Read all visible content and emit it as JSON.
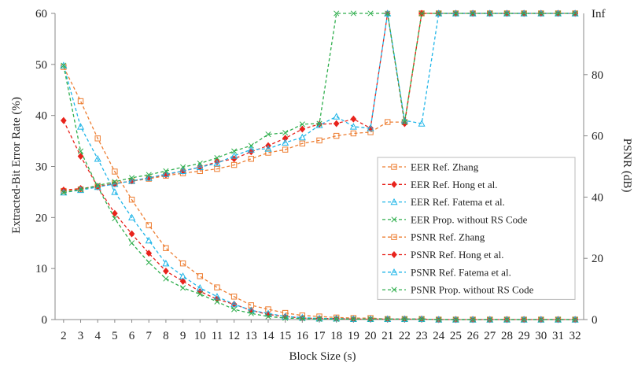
{
  "chart_data": {
    "type": "line",
    "xlabel": "Block Size (s)",
    "ylabel_left": "Extracted-Bit Error Rate (%)",
    "ylabel_right": "PSNR (dB)",
    "x": [
      2,
      3,
      4,
      5,
      6,
      7,
      8,
      9,
      10,
      11,
      12,
      13,
      14,
      15,
      16,
      17,
      18,
      19,
      20,
      21,
      22,
      23,
      24,
      25,
      26,
      27,
      28,
      29,
      30,
      31,
      32
    ],
    "x_tick_labels": [
      "2",
      "3",
      "4",
      "5",
      "6",
      "7",
      "8",
      "9",
      "10",
      "11",
      "12",
      "13",
      "14",
      "15",
      "16",
      "17",
      "18",
      "19",
      "20",
      "21",
      "22",
      "23",
      "24",
      "25",
      "26",
      "27",
      "28",
      "29",
      "30",
      "31",
      "32"
    ],
    "ylim_left": [
      0,
      60
    ],
    "yticks_left": [
      "0",
      "10",
      "20",
      "30",
      "40",
      "50",
      "60"
    ],
    "ylim_right": [
      0,
      100
    ],
    "yticks_right": [
      "0",
      "20",
      "40",
      "60",
      "80"
    ],
    "right_top_label": "Inf",
    "grid": false,
    "legend_position": "right",
    "series": [
      {
        "name": "EER Ref. Zhang",
        "axis": "left",
        "color": "#ed7d31",
        "marker": "square",
        "values": [
          49.5,
          42.8,
          35.5,
          29.0,
          23.5,
          18.5,
          14.0,
          11.0,
          8.5,
          6.3,
          4.5,
          2.8,
          2.0,
          1.3,
          0.8,
          0.6,
          0.4,
          0.3,
          0.3,
          0.1,
          0.1,
          0.1,
          0,
          0,
          0,
          0,
          0,
          0,
          0,
          0,
          0
        ]
      },
      {
        "name": "EER Ref. Hong et al.",
        "axis": "left",
        "color": "#e8231c",
        "marker": "diamond",
        "values": [
          39.0,
          32.0,
          26.0,
          20.8,
          16.8,
          13.0,
          9.5,
          7.5,
          5.5,
          4.0,
          3.0,
          1.8,
          1.0,
          0.6,
          0.3,
          0.2,
          0.2,
          0.1,
          0.1,
          0.1,
          0.1,
          0.1,
          0,
          0,
          0,
          0,
          0,
          0,
          0,
          0,
          0
        ]
      },
      {
        "name": "EER Ref. Fatema et al.",
        "axis": "left",
        "color": "#1fb5e8",
        "marker": "triangle",
        "values": [
          49.8,
          37.8,
          31.5,
          25.0,
          20.0,
          15.5,
          11.0,
          8.5,
          6.2,
          4.5,
          3.0,
          1.8,
          1.2,
          0.6,
          0.4,
          0.2,
          0.2,
          0.1,
          0.1,
          0.1,
          0.1,
          0.1,
          0,
          0,
          0,
          0,
          0,
          0,
          0,
          0,
          0
        ]
      },
      {
        "name": "EER Prop. without RS Code",
        "axis": "left",
        "color": "#2eae4c",
        "marker": "x",
        "values": [
          49.8,
          33.0,
          26.0,
          19.8,
          15.0,
          11.2,
          8.0,
          6.2,
          5.0,
          3.5,
          2.0,
          1.2,
          0.6,
          0.3,
          0.2,
          0.1,
          0.1,
          0.1,
          0.1,
          0.1,
          0.1,
          0.1,
          0,
          0,
          0,
          0,
          0,
          0,
          0,
          0,
          0
        ]
      },
      {
        "name": "PSNR Ref. Zhang",
        "axis": "right",
        "color": "#ed7d31",
        "marker": "square",
        "values": [
          42.0,
          42.5,
          43.5,
          44.5,
          45.2,
          46.0,
          47.0,
          47.8,
          48.5,
          49.2,
          50.5,
          52.5,
          54.5,
          55.5,
          57.5,
          58.5,
          60.0,
          60.8,
          61.2,
          64.5,
          64.5,
          "Inf",
          "Inf",
          "Inf",
          "Inf",
          "Inf",
          "Inf",
          "Inf",
          "Inf",
          "Inf",
          "Inf"
        ]
      },
      {
        "name": "PSNR Ref. Hong et al.",
        "axis": "right",
        "color": "#e8231c",
        "marker": "diamond",
        "values": [
          42.3,
          42.8,
          43.5,
          44.3,
          45.3,
          46.3,
          47.3,
          48.5,
          49.8,
          51.5,
          52.5,
          54.8,
          56.8,
          59.2,
          62.2,
          63.8,
          64.0,
          65.5,
          62.5,
          "Inf",
          64.0,
          "Inf",
          "Inf",
          "Inf",
          "Inf",
          "Inf",
          "Inf",
          "Inf",
          "Inf",
          "Inf",
          "Inf"
        ]
      },
      {
        "name": "PSNR Ref. Fatema et al.",
        "axis": "right",
        "color": "#1fb5e8",
        "marker": "triangle",
        "values": [
          41.5,
          42.3,
          43.3,
          44.3,
          45.3,
          46.3,
          47.5,
          48.5,
          49.8,
          51.0,
          53.5,
          55.5,
          55.8,
          57.8,
          59.5,
          63.5,
          66.3,
          63.0,
          62.5,
          "Inf",
          65.0,
          64.0,
          "Inf",
          "Inf",
          "Inf",
          "Inf",
          "Inf",
          "Inf",
          "Inf",
          "Inf",
          "Inf"
        ]
      },
      {
        "name": "PSNR Prop. without RS Code",
        "axis": "right",
        "color": "#2eae4c",
        "marker": "x",
        "values": [
          41.5,
          42.5,
          43.8,
          45.0,
          46.3,
          47.3,
          48.5,
          49.8,
          51.0,
          52.8,
          55.0,
          56.8,
          60.5,
          61.0,
          63.8,
          64.0,
          "Inf",
          "Inf",
          "Inf",
          "Inf",
          64.5,
          "Inf",
          "Inf",
          "Inf",
          "Inf",
          "Inf",
          "Inf",
          "Inf",
          "Inf",
          "Inf",
          "Inf"
        ]
      }
    ]
  }
}
